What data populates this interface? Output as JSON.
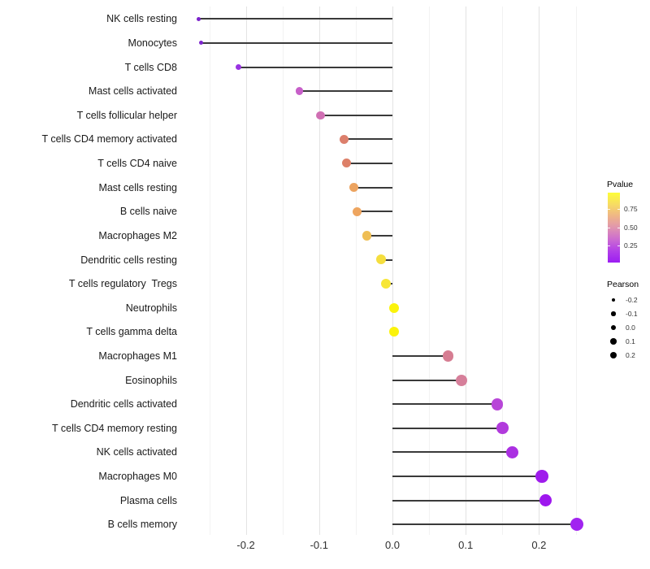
{
  "chart_data": {
    "type": "lollipop",
    "orientation": "horizontal",
    "title": "",
    "xlabel": "",
    "ylabel": "",
    "categories": [
      "NK cells resting",
      "Monocytes",
      "T cells CD8",
      "Mast cells activated",
      "T cells follicular helper",
      "T cells CD4 memory activated",
      "T cells CD4 naive",
      "Mast cells resting",
      "B cells naive",
      "Macrophages M2",
      "Dendritic cells resting",
      "T cells regulatory  Tregs",
      "Neutrophils",
      "T cells gamma delta",
      "Macrophages M1",
      "Eosinophils",
      "Dendritic cells activated",
      "T cells CD4 memory resting",
      "NK cells activated",
      "Macrophages M0",
      "Plasma cells",
      "B cells memory"
    ],
    "values": [
      -0.264,
      -0.261,
      -0.21,
      -0.127,
      -0.098,
      -0.066,
      -0.063,
      -0.053,
      -0.048,
      -0.035,
      -0.015,
      -0.009,
      0.002,
      0.002,
      0.076,
      0.094,
      0.143,
      0.15,
      0.163,
      0.204,
      0.209,
      0.252
    ],
    "point_colors": [
      "#7B23CB",
      "#7E26CE",
      "#9933E2",
      "#C75FC9",
      "#D06FB3",
      "#DC7F6C",
      "#DD8068",
      "#ECA35F",
      "#EEA55F",
      "#EFBE54",
      "#F5DE3E",
      "#F7E636",
      "#FBF30B",
      "#FBF30B",
      "#D67D92",
      "#D67F9A",
      "#B846D8",
      "#B13ADC",
      "#AB30E2",
      "#9F1CEC",
      "#9E17EE",
      "#A124F0"
    ],
    "x_ticks": [
      -0.2,
      -0.1,
      0.0,
      0.1,
      0.2
    ],
    "x_tick_labels": [
      "-0.2",
      "-0.1",
      "0.0",
      "0.1",
      "0.2"
    ],
    "x_minor_ticks": [
      -0.25,
      -0.15,
      -0.05,
      0.05,
      0.15,
      0.25
    ],
    "xlim": [
      -0.286,
      0.264
    ],
    "grid": "vertical-only",
    "legend_position": "right"
  },
  "legend": {
    "pvalue": {
      "title": "Pvalue",
      "tick_labels": [
        "0.75",
        "0.50",
        "0.25"
      ],
      "gradient_top_to_bottom": [
        "#FDFD38",
        "#F7DC63",
        "#EFB587",
        "#E095AF",
        "#CC6CD0",
        "#B23FE8",
        "#9C1DF2"
      ]
    },
    "pearson": {
      "title": "Pearson",
      "entries": [
        "-0.2",
        "-0.1",
        "0.0",
        "0.1",
        "0.2"
      ],
      "dot_color": "#000000"
    }
  },
  "colors": {
    "background": "#FFFFFF",
    "stem": "#3A3A3A",
    "grid_major": "#E3E3E3",
    "grid_minor": "#F2F2F2",
    "axis_tick_text": "#303030",
    "category_text": "#1A1A1A",
    "legend_text": "#333333",
    "legend_title_text": "#1A1A1A"
  }
}
